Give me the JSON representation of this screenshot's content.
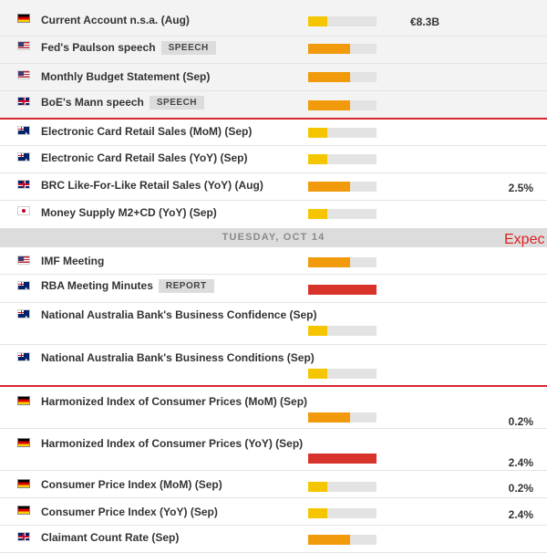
{
  "colors": {
    "low": "#f5c600",
    "medium": "#f19a0b",
    "high": "#d8332a",
    "separator": "#d8262a"
  },
  "events": [
    {
      "flag": "de",
      "name": "Current Account n.s.a. (Aug)",
      "impact": "low",
      "actual": "€8.3B",
      "previous": ""
    },
    {
      "flag": "us",
      "name": "Fed's Paulson speech",
      "tag": "SPEECH",
      "impact": "medium",
      "actual": "",
      "previous": ""
    },
    {
      "flag": "us",
      "name": "Monthly Budget Statement (Sep)",
      "impact": "medium",
      "actual": "",
      "previous": ""
    },
    {
      "flag": "gb",
      "name": "BoE's Mann speech",
      "tag": "SPEECH",
      "impact": "medium",
      "actual": "",
      "previous": ""
    },
    {
      "flag": "au",
      "name": "Electronic Card Retail Sales (MoM) (Sep)",
      "impact": "low",
      "actual": "",
      "previous": ""
    },
    {
      "flag": "au",
      "name": "Electronic Card Retail Sales (YoY) (Sep)",
      "impact": "low",
      "actual": "",
      "previous": ""
    },
    {
      "flag": "gb",
      "name": "BRC Like-For-Like Retail Sales (YoY) (Aug)",
      "impact": "medium",
      "actual": "",
      "previous": "2.5%"
    },
    {
      "flag": "jp",
      "name": "Money Supply M2+CD (YoY) (Sep)",
      "impact": "low",
      "actual": "",
      "previous": ""
    },
    {
      "flag": "us",
      "name": "IMF Meeting",
      "impact": "medium",
      "actual": "",
      "previous": ""
    },
    {
      "flag": "au",
      "name": "RBA Meeting Minutes",
      "tag": "REPORT",
      "impact": "high",
      "actual": "",
      "previous": ""
    },
    {
      "flag": "au",
      "name": "National Australia Bank's Business Confidence (Sep)",
      "impact": "low",
      "actual": "",
      "previous": ""
    },
    {
      "flag": "au",
      "name": "National Australia Bank's Business Conditions (Sep)",
      "impact": "low",
      "actual": "",
      "previous": ""
    },
    {
      "flag": "de",
      "name": "Harmonized Index of Consumer Prices (MoM) (Sep)",
      "impact": "medium",
      "actual": "",
      "previous": "0.2%"
    },
    {
      "flag": "de",
      "name": "Harmonized Index of Consumer Prices (YoY) (Sep)",
      "impact": "high",
      "actual": "",
      "previous": "2.4%"
    },
    {
      "flag": "de",
      "name": "Consumer Price Index (MoM) (Sep)",
      "impact": "low",
      "actual": "",
      "previous": "0.2%"
    },
    {
      "flag": "de",
      "name": "Consumer Price Index (YoY) (Sep)",
      "impact": "low",
      "actual": "",
      "previous": "2.4%"
    },
    {
      "flag": "gb",
      "name": "Claimant Count Rate (Sep)",
      "impact": "medium",
      "actual": "",
      "previous": ""
    }
  ],
  "date_band": {
    "label": "TUESDAY, OCT 14",
    "overlay": "Expec"
  }
}
